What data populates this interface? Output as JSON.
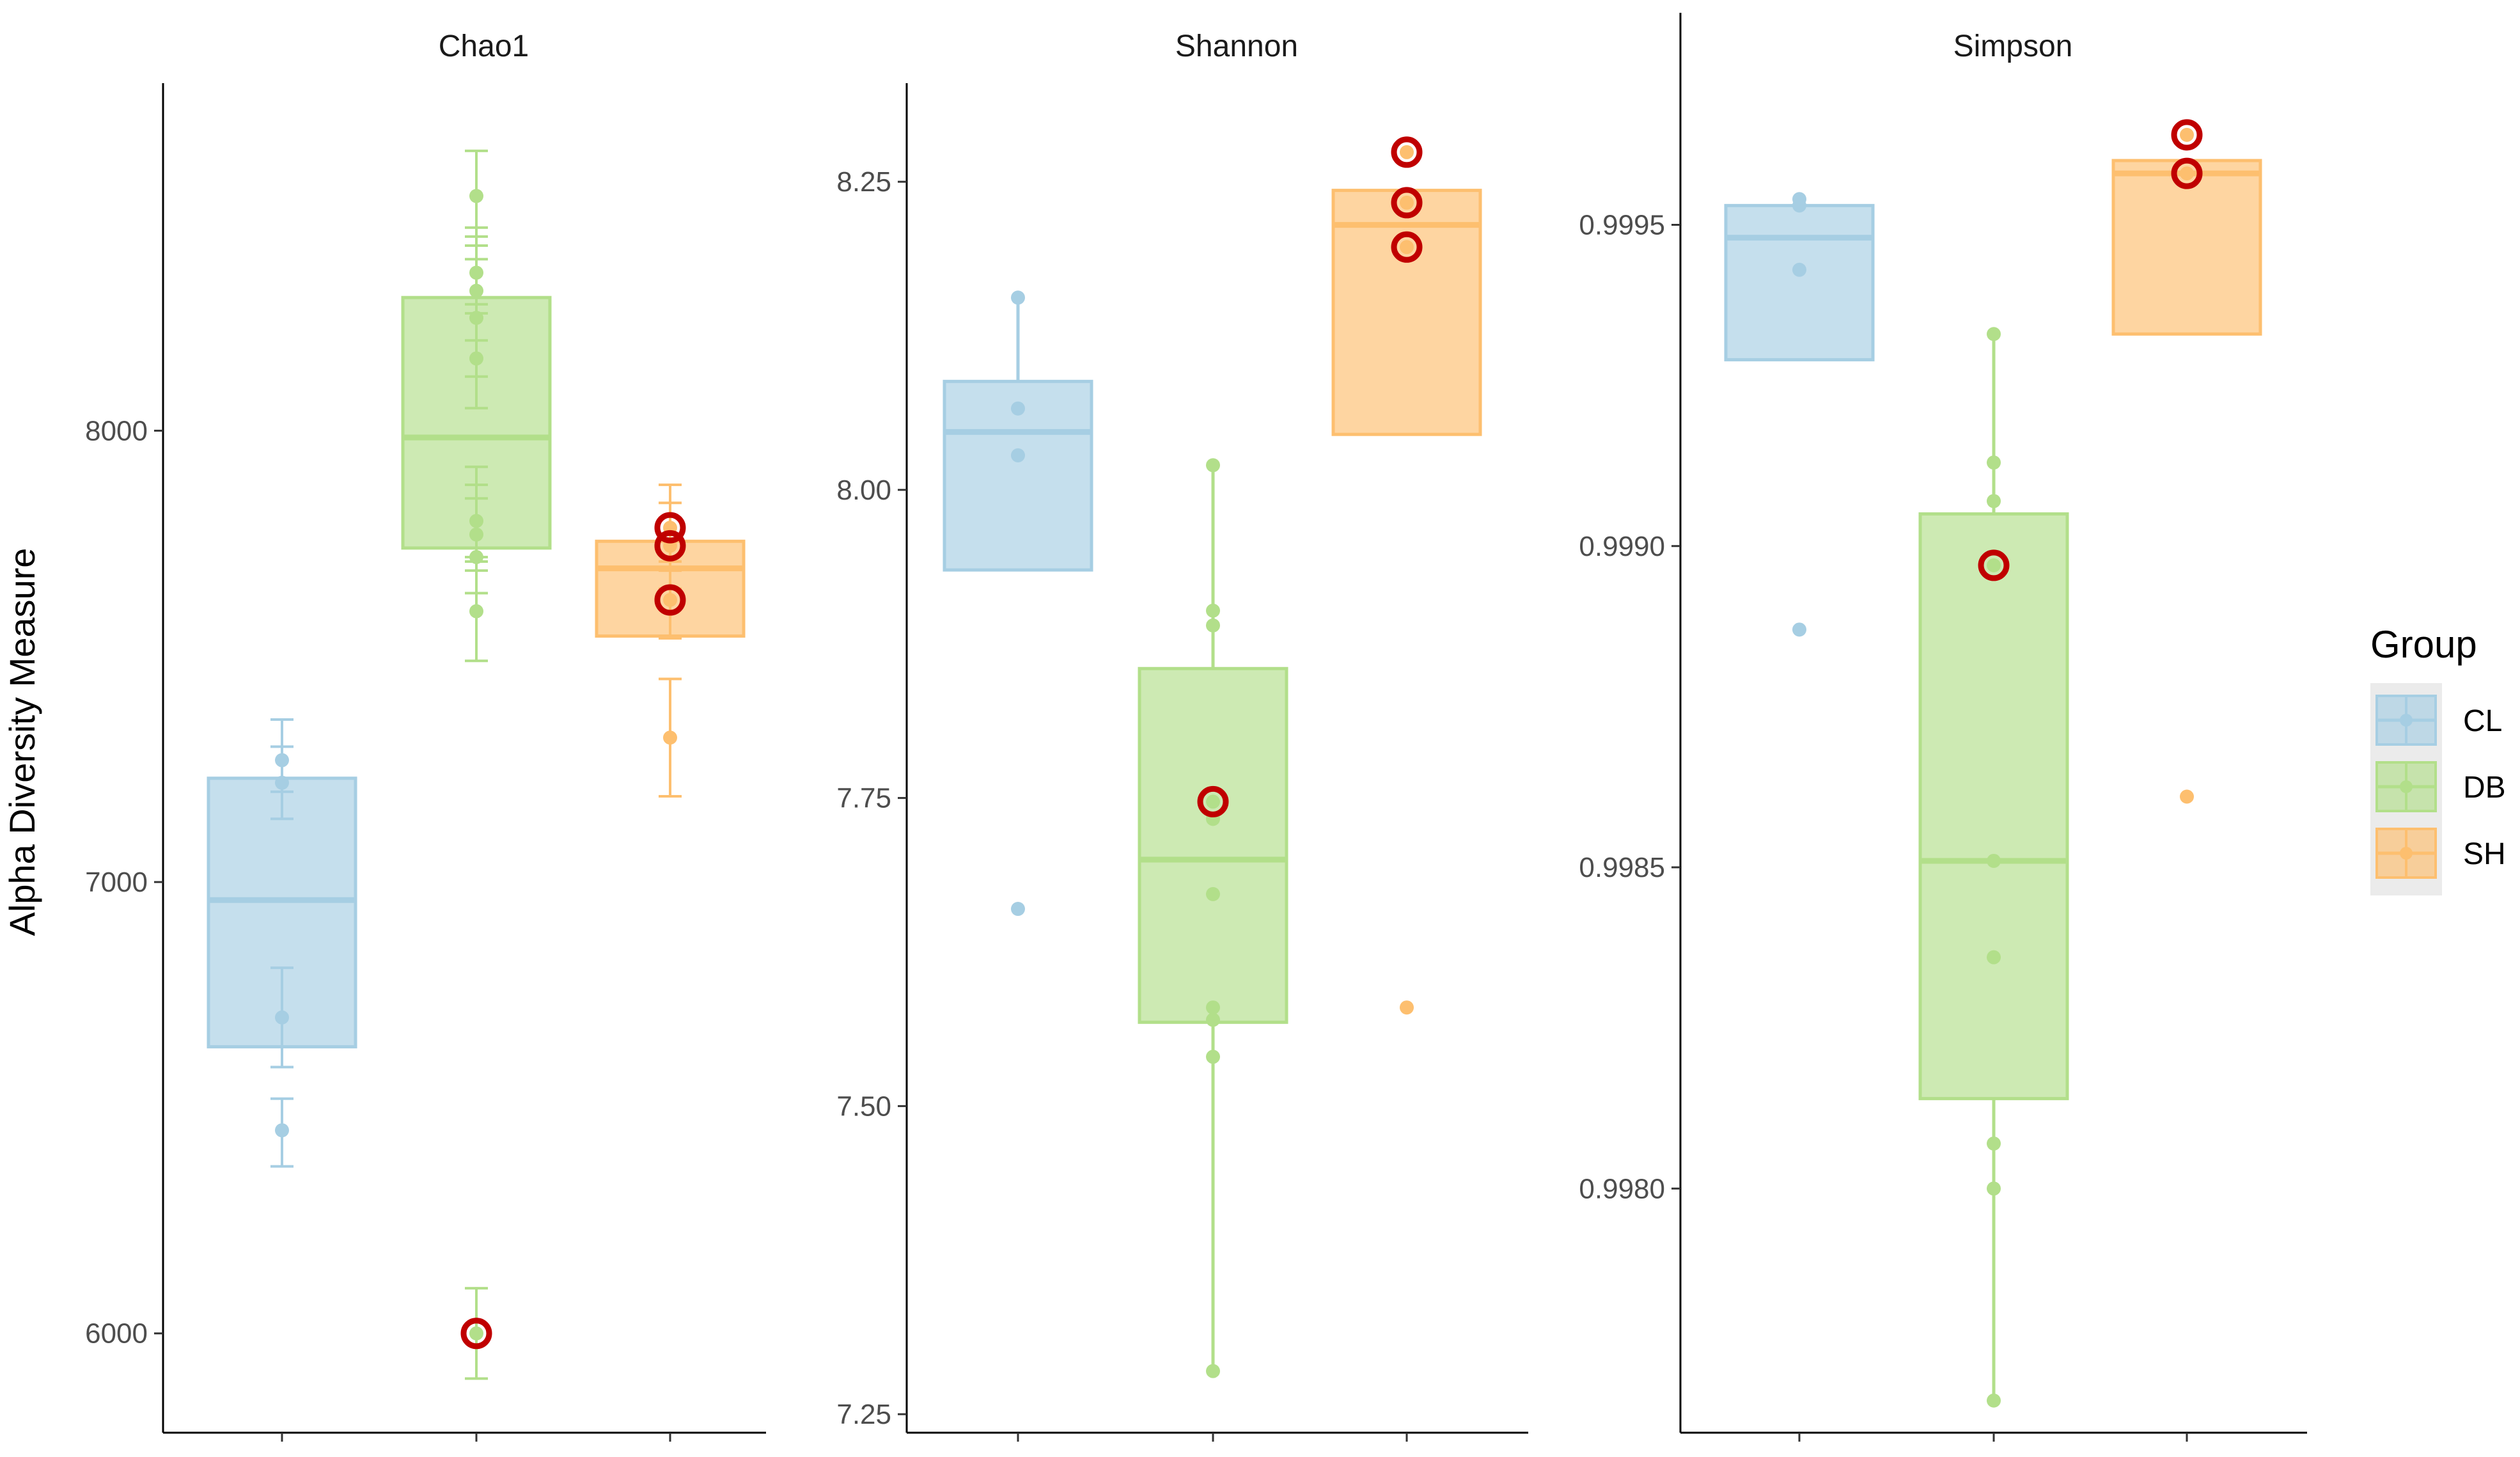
{
  "chart_data": {
    "type": "box",
    "ylabel": "Alpha Diversity Measure",
    "legend": {
      "title": "Group",
      "placement": "right",
      "entries": [
        {
          "label": "CL",
          "color": "#a6cee3"
        },
        {
          "label": "DB",
          "color": "#b2df8a"
        },
        {
          "label": "SH",
          "color": "#fdbf6f"
        }
      ]
    },
    "highlight_color": "#c00000",
    "panels": [
      {
        "title": "Chao1",
        "ylim": [
          5780,
          8770
        ],
        "ticks": [
          6000,
          7000,
          8000
        ],
        "tick_labels": [
          "6000",
          "7000",
          "8000"
        ],
        "groups": [
          {
            "name": "CL",
            "box": {
              "q1": 6635,
              "median": 6960,
              "q3": 7230
            },
            "points": [
              6450,
              6700,
              7220,
              7270
            ],
            "errorbars": [
              [
                6370,
                6520
              ],
              [
                6590,
                6810
              ],
              [
                7140,
                7300
              ],
              [
                7200,
                7360
              ]
            ],
            "highlighted": []
          },
          {
            "name": "DB",
            "box": {
              "q1": 7740,
              "median": 7985,
              "q3": 8295
            },
            "points": [
              6000,
              7600,
              7720,
              7770,
              7800,
              8160,
              8250,
              8310,
              8350,
              8520
            ],
            "errorbars": [
              [
                5900,
                6100
              ],
              [
                7490,
                7710
              ],
              [
                7640,
                7850
              ],
              [
                7690,
                7880
              ],
              [
                7720,
                7920
              ],
              [
                8050,
                8280
              ],
              [
                8120,
                8380
              ],
              [
                8200,
                8430
              ],
              [
                8260,
                8450
              ],
              [
                8410,
                8620
              ]
            ],
            "highlighted": [
              6000
            ]
          },
          {
            "name": "SH",
            "box": {
              "q1": 7545,
              "median": 7695,
              "q3": 7755
            },
            "points": [
              7320,
              7625,
              7745,
              7785
            ],
            "errorbars": [
              [
                7190,
                7450
              ],
              [
                7540,
                7710
              ],
              [
                7650,
                7840
              ],
              [
                7690,
                7880
              ]
            ],
            "highlighted": [
              7625,
              7745,
              7785
            ]
          }
        ]
      },
      {
        "title": "Shannon",
        "ylim": [
          7.235,
          8.33
        ],
        "ticks": [
          7.25,
          7.5,
          7.75,
          8.0,
          8.25
        ],
        "tick_labels": [
          "7.25",
          "7.50",
          "7.75",
          "8.00",
          "8.25"
        ],
        "groups": [
          {
            "name": "CL",
            "box": {
              "q1": 7.935,
              "median": 8.047,
              "q3": 8.088,
              "whisker_low": 7.935,
              "whisker_high": 8.156
            },
            "points": [
              7.66,
              8.028,
              8.066,
              8.156
            ],
            "highlighted": []
          },
          {
            "name": "DB",
            "box": {
              "q1": 7.568,
              "median": 7.7,
              "q3": 7.855,
              "whisker_low": 7.285,
              "whisker_high": 8.02
            },
            "points": [
              7.285,
              7.54,
              7.57,
              7.58,
              7.672,
              7.733,
              7.747,
              7.89,
              7.902,
              8.02
            ],
            "highlighted": [
              7.747
            ]
          },
          {
            "name": "SH",
            "box": {
              "q1": 8.045,
              "median": 8.215,
              "q3": 8.243
            },
            "points": [
              7.58,
              8.197,
              8.233,
              8.274
            ],
            "highlighted": [
              8.197,
              8.233,
              8.274
            ]
          }
        ]
      },
      {
        "title": "Simpson",
        "ylim": [
          0.99762,
          0.99983
        ],
        "ticks": [
          0.998,
          0.9985,
          0.999,
          0.9995
        ],
        "tick_labels": [
          "0.9980",
          "0.9985",
          "0.9990",
          "0.9995"
        ],
        "groups": [
          {
            "name": "CL",
            "box": {
              "q1": 0.99929,
              "median": 0.99948,
              "q3": 0.99953
            },
            "points": [
              0.99887,
              0.99943,
              0.99953,
              0.99954
            ],
            "highlighted": []
          },
          {
            "name": "DB",
            "box": {
              "q1": 0.99814,
              "median": 0.99851,
              "q3": 0.99905,
              "whisker_low": 0.99767,
              "whisker_high": 0.99933
            },
            "points": [
              0.99767,
              0.998,
              0.99807,
              0.99836,
              0.99851,
              0.99897,
              0.99907,
              0.99913,
              0.99933
            ],
            "highlighted": [
              0.99897
            ]
          },
          {
            "name": "SH",
            "box": {
              "q1": 0.99933,
              "median": 0.99958,
              "q3": 0.9996
            },
            "points": [
              0.99861,
              0.99958,
              0.99964
            ],
            "highlighted": [
              0.99958,
              0.99964
            ]
          }
        ]
      }
    ]
  }
}
